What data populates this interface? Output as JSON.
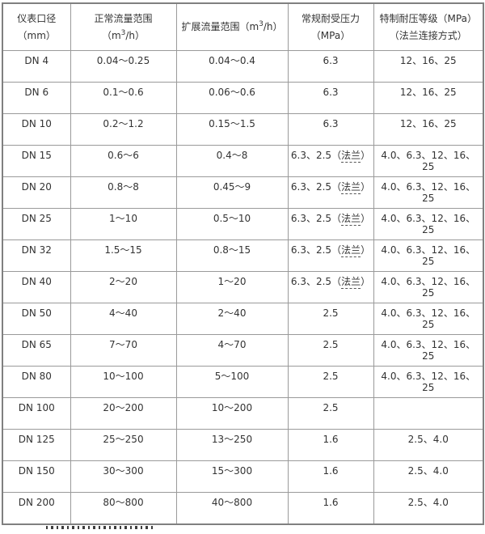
{
  "colors": {
    "text": "#333333",
    "border_outer": "#808080",
    "border_inner": "#9a9a9a",
    "background": "#ffffff"
  },
  "table": {
    "headers": [
      {
        "text": "仪表口径（mm）"
      },
      {
        "prefix": "正常流量范围（m",
        "sup": "3",
        "suffix": "/h）"
      },
      {
        "prefix": "扩展流量范围（m",
        "sup": "3",
        "suffix": "/h）"
      },
      {
        "text": "常规耐受压力（MPa）"
      },
      {
        "text": "特制耐压等级（MPa）（法兰连接方式）"
      }
    ],
    "flange_note_open": "（",
    "flange_note_close": "）",
    "rows": [
      {
        "diameter": "DN 4",
        "normal": "0.04～0.25",
        "extended": "0.04～0.4",
        "pressure": "6.3",
        "flange_note": "",
        "special": "12、16、25"
      },
      {
        "diameter": "DN 6",
        "normal": "0.1～0.6",
        "extended": "0.06～0.6",
        "pressure": "6.3",
        "flange_note": "",
        "special": "12、16、25"
      },
      {
        "diameter": "DN 10",
        "normal": "0.2～1.2",
        "extended": "0.15～1.5",
        "pressure": "6.3",
        "flange_note": "",
        "special": "12、16、25"
      },
      {
        "diameter": "DN 15",
        "normal": "0.6～6",
        "extended": "0.4～8",
        "pressure": "6.3、2.5",
        "flange_note": "法兰",
        "special": "4.0、6.3、12、16、25"
      },
      {
        "diameter": "DN 20",
        "normal": "0.8～8",
        "extended": "0.45～9",
        "pressure": "6.3、2.5",
        "flange_note": "法兰",
        "special": "4.0、6.3、12、16、25"
      },
      {
        "diameter": "DN 25",
        "normal": "1～10",
        "extended": "0.5～10",
        "pressure": "6.3、2.5",
        "flange_note": "法兰",
        "special": "4.0、6.3、12、16、25"
      },
      {
        "diameter": "DN 32",
        "normal": "1.5～15",
        "extended": "0.8～15",
        "pressure": "6.3、2.5",
        "flange_note": "法兰",
        "special": "4.0、6.3、12、16、25"
      },
      {
        "diameter": "DN 40",
        "normal": "2～20",
        "extended": "1～20",
        "pressure": "6.3、2.5",
        "flange_note": "法兰",
        "special": "4.0、6.3、12、16、25"
      },
      {
        "diameter": "DN 50",
        "normal": "4～40",
        "extended": "2～40",
        "pressure": "2.5",
        "flange_note": "",
        "special": "4.0、6.3、12、16、25"
      },
      {
        "diameter": "DN 65",
        "normal": "7～70",
        "extended": "4～70",
        "pressure": "2.5",
        "flange_note": "",
        "special": "4.0、6.3、12、16、25"
      },
      {
        "diameter": "DN 80",
        "normal": "10～100",
        "extended": "5～100",
        "pressure": "2.5",
        "flange_note": "",
        "special": "4.0、6.3、12、16、25"
      },
      {
        "diameter": "DN 100",
        "normal": "20～200",
        "extended": "10～200",
        "pressure": "2.5",
        "flange_note": "",
        "special": ""
      },
      {
        "diameter": "DN 125",
        "normal": "25～250",
        "extended": "13～250",
        "pressure": "1.6",
        "flange_note": "",
        "special": "2.5、4.0"
      },
      {
        "diameter": "DN 150",
        "normal": "30～300",
        "extended": "15～300",
        "pressure": "1.6",
        "flange_note": "",
        "special": "2.5、4.0"
      },
      {
        "diameter": "DN 200",
        "normal": "80～800",
        "extended": "40～800",
        "pressure": "1.6",
        "flange_note": "",
        "special": "2.5、4.0"
      }
    ]
  }
}
